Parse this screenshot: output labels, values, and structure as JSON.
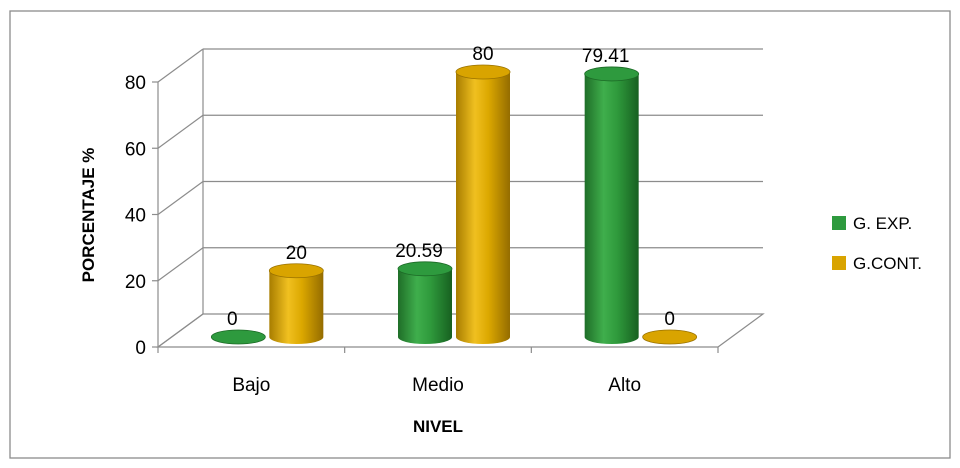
{
  "chart_data": {
    "type": "bar",
    "title": "",
    "xlabel": "NIVEL",
    "ylabel": "PORCENTAJE %",
    "categories": [
      "Bajo",
      "Medio",
      "Alto"
    ],
    "y_ticks": [
      "0",
      "20",
      "40",
      "60",
      "80"
    ],
    "ylim": [
      0,
      80
    ],
    "grid": true,
    "legend_position": "right",
    "series": [
      {
        "name": "G. EXP.",
        "values": [
          0,
          20.59,
          79.41
        ],
        "labels": [
          "0",
          "20.59",
          "79.41"
        ],
        "color": "#2e9a3e"
      },
      {
        "name": "G.CONT.",
        "values": [
          20,
          80,
          0
        ],
        "labels": [
          "20",
          "80",
          "0"
        ],
        "color": "#d9a400"
      }
    ]
  }
}
